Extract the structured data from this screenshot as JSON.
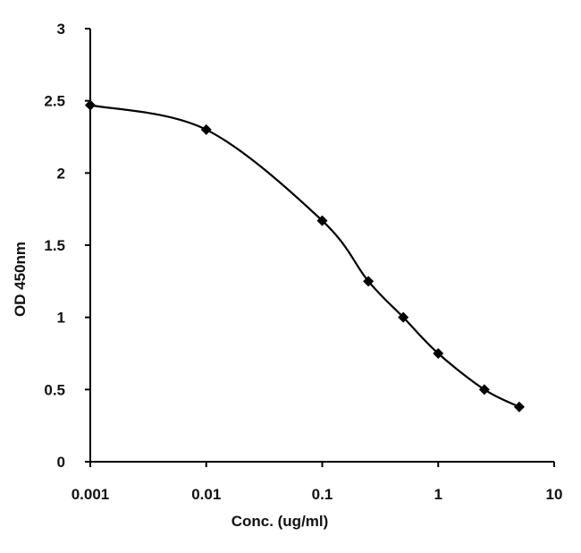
{
  "chart_data": {
    "type": "line",
    "title": "",
    "xlabel": "Conc. (ug/ml)",
    "ylabel": "OD 450nm",
    "x_scale": "log",
    "xlim": [
      0.001,
      10
    ],
    "ylim": [
      0,
      3
    ],
    "x_ticks": [
      "0.001",
      "0.01",
      "0.1",
      "1",
      "10"
    ],
    "y_ticks": [
      "0",
      "0.5",
      "1",
      "1.5",
      "2",
      "2.5",
      "3"
    ],
    "grid": false,
    "legend": "none",
    "smooth": true,
    "line_color": "#000000",
    "marker": "diamond",
    "series": [
      {
        "x": [
          0.001,
          0.01,
          0.1,
          0.25,
          0.5,
          1,
          2.5,
          5
        ],
        "y": [
          2.47,
          2.3,
          1.67,
          1.25,
          1.0,
          0.75,
          0.5,
          0.38
        ]
      }
    ]
  }
}
